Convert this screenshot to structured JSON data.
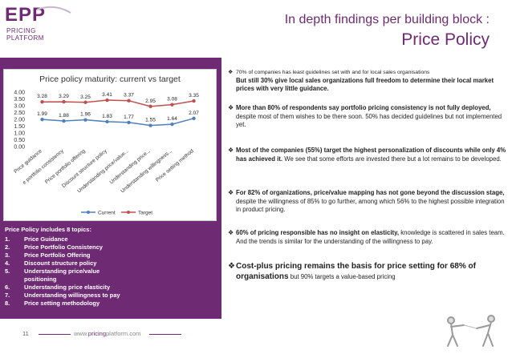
{
  "logo": {
    "main": "EPP",
    "line1": "PRICING",
    "line2": "PLATFORM"
  },
  "header": {
    "subtitle": "In depth findings per building block :",
    "title": "Price Policy"
  },
  "chart_data": {
    "type": "line",
    "title": "Price policy maturity: current vs target",
    "categories": [
      "Price guidance",
      "Price portfolio consistency",
      "Price portfolio offering",
      "Discount structure policy",
      "Understanding price/value...",
      "Understanding price...",
      "Understanding willingness...",
      "Price setting method"
    ],
    "category_labels": [
      "Price guidance",
      "e portfolio consistency",
      "Price portfolio offering",
      "Discount structure policy",
      "Understanding price/value...",
      "Understanding price...",
      "Understanding willingness...",
      "Price setting method"
    ],
    "series": [
      {
        "name": "Current",
        "color": "#4f81bd",
        "values": [
          1.99,
          1.88,
          1.96,
          1.83,
          1.77,
          1.55,
          1.64,
          2.07
        ]
      },
      {
        "name": "Target",
        "color": "#c0504d",
        "values": [
          3.28,
          3.29,
          3.25,
          3.41,
          3.37,
          2.95,
          3.08,
          3.35
        ]
      }
    ],
    "value_labels": {
      "Current": [
        "1.99",
        "1.88",
        "1.96",
        "1.83",
        "1.77",
        "1.55",
        "1.64",
        "2.07"
      ],
      "Target": [
        "3.28",
        "3.29",
        "3.25",
        "3.41",
        "3.37",
        "2.95",
        "3.08",
        "3.35"
      ]
    },
    "yticks": [
      "0.00",
      "0.50",
      "1.00",
      "1.50",
      "2.00",
      "2.50",
      "3.00",
      "3.50",
      "4.00"
    ],
    "ylim": [
      0,
      4
    ],
    "grid": false,
    "legend": "bottom"
  },
  "topics": {
    "heading": "Price Policy includes 8 topics:",
    "items": [
      {
        "num": "1.",
        "label": "Price Guidance"
      },
      {
        "num": "2.",
        "label": "Price Portfolio Consistency"
      },
      {
        "num": "3.",
        "label": "Price Portfolio Offering"
      },
      {
        "num": "4.",
        "label": "Discount structure policy"
      },
      {
        "num": "5.",
        "label": "Understanding price/value positioning"
      },
      {
        "num": "6.",
        "label": "Understanding price elasticity"
      },
      {
        "num": "7.",
        "label": "Understanding willingness to pay"
      },
      {
        "num": "8.",
        "label": "Price setting methodology"
      }
    ]
  },
  "findings": {
    "bullet": "❖",
    "f1": {
      "a": "70% of companies has least guidelines set with and for local sales organisations",
      "b": "But still 30% give local sales organizations full freedom to determine their local market prices with very little guidance."
    },
    "f2": {
      "a": "More than 80% of respondents say portfolio pricing consistency is not fully deployed,",
      "b": " despite most of them wishes to be there soon",
      "c": ". 50% has decided guidelines but not implemented yet."
    },
    "f3": {
      "a": "Most of the companies (55%) target the highest personalization of discounts while only 4% has achieved it.",
      "b": " We see that some efforts are invested there but a lot remains to be developed."
    },
    "f4": {
      "a": "For 82% of organizations, price/value mapping has not gone beyond the discussion stage,",
      "b": " despite the willingness of 85% to go further, among which 56% to the highest possible integration in product pricing."
    },
    "f5": {
      "a": "60% of pricing responsible has no insight on elasticity,",
      "b": " knowledge is scattered in sales team. And the trends is similar for the understanding of the willingness to pay."
    },
    "f6": {
      "a": "Cost-plus pricing remains the basis for price setting for 68% of organisations",
      "b": " but 90% targets a value-based pricing"
    }
  },
  "footer": {
    "page": "11",
    "url_prefix": "www.",
    "url_bold": "pricing",
    "url_suffix": "platform.com"
  }
}
